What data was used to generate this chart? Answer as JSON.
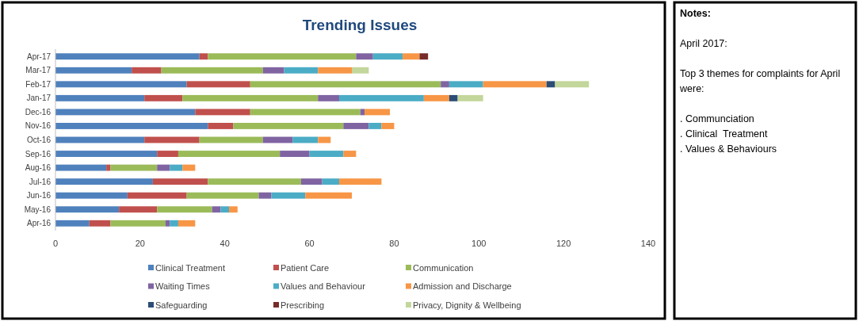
{
  "chart_data": [
    {
      "type": "bar",
      "orientation": "horizontal",
      "stacked": true,
      "title": "Trending Issues",
      "categories": [
        "Apr-17",
        "Mar-17",
        "Feb-17",
        "Jan-17",
        "Dec-16",
        "Nov-16",
        "Oct-16",
        "Sep-16",
        "Aug-16",
        "Jul-16",
        "Jun-16",
        "May-16",
        "Apr-16"
      ],
      "series": [
        {
          "name": "Clinical Treatment",
          "color": "#4f81bd",
          "values": [
            34,
            18,
            31,
            21,
            33,
            36,
            21,
            24,
            12,
            23,
            17,
            15,
            8
          ]
        },
        {
          "name": "Patient Care",
          "color": "#c0504d",
          "values": [
            2,
            7,
            15,
            9,
            13,
            6,
            13,
            5,
            1,
            13,
            14,
            9,
            5
          ]
        },
        {
          "name": "Communication",
          "color": "#9bbb59",
          "values": [
            35,
            24,
            45,
            32,
            26,
            26,
            15,
            24,
            11,
            22,
            17,
            13,
            13
          ]
        },
        {
          "name": "Waiting Times",
          "color": "#8064a2",
          "values": [
            4,
            5,
            2,
            5,
            1,
            6,
            7,
            7,
            3,
            5,
            3,
            2,
            1
          ]
        },
        {
          "name": "Values and Behaviour",
          "color": "#4bacc6",
          "values": [
            7,
            8,
            8,
            20,
            null,
            3,
            6,
            8,
            3,
            4,
            8,
            2,
            2
          ]
        },
        {
          "name": "Admission and Discharge",
          "color": "#f79646",
          "values": [
            4,
            8,
            15,
            6,
            6,
            3,
            3,
            3,
            3,
            10,
            11,
            2,
            4
          ]
        },
        {
          "name": "Safeguarding",
          "color": "#2c4d75",
          "values": [
            null,
            null,
            2,
            2,
            null,
            null,
            null,
            null,
            null,
            null,
            null,
            null,
            null
          ]
        },
        {
          "name": "Prescribing",
          "color": "#772c2a",
          "values": [
            2,
            null,
            null,
            null,
            null,
            null,
            null,
            null,
            null,
            null,
            null,
            null,
            null
          ]
        },
        {
          "name": "Privacy, Dignity & Wellbeing",
          "color": "#c3d69b",
          "values": [
            null,
            4,
            8,
            6,
            null,
            null,
            null,
            null,
            null,
            null,
            null,
            null,
            null
          ]
        }
      ],
      "xlim": [
        0,
        140
      ],
      "xticks": [
        0,
        20,
        40,
        60,
        80,
        100,
        120,
        140
      ],
      "grid": false,
      "legend": "bottom"
    },
    {
      "type": "other",
      "title": "Notes:",
      "annotations": [
        "April 2017:",
        "Top 3 themes for complaints for April were:",
        ". Communciation",
        ". Clinical  Treatment",
        ". Values & Behaviours"
      ]
    }
  ]
}
